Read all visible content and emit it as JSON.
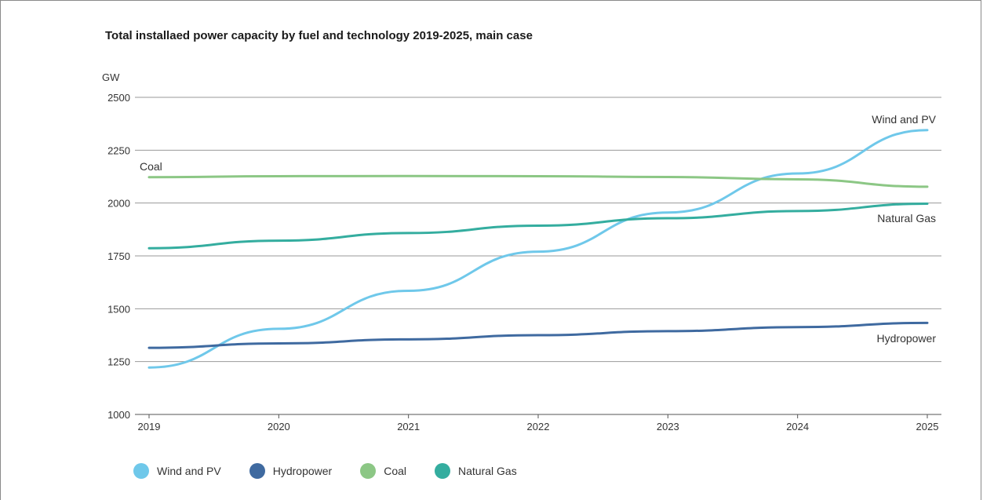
{
  "chart_data": {
    "type": "line",
    "title": "Total installaed power capacity by fuel and technology 2019-2025, main case",
    "ylabel": "GW",
    "xlabel": "",
    "x": [
      "2019",
      "2020",
      "2021",
      "2022",
      "2023",
      "2024",
      "2025"
    ],
    "yticks": [
      "1000",
      "1250",
      "1500",
      "1750",
      "2000",
      "2250",
      "2500"
    ],
    "ylim": [
      1000,
      2500
    ],
    "grid": "horizontal",
    "legend_position": "bottom",
    "series": [
      {
        "name": "Wind and PV",
        "color": "#6fc8ea",
        "values": [
          1222,
          1405,
          1585,
          1770,
          1955,
          2140,
          2345
        ]
      },
      {
        "name": "Hydropower",
        "color": "#3f6aa0",
        "values": [
          1315,
          1336,
          1355,
          1375,
          1394,
          1413,
          1433
        ]
      },
      {
        "name": "Coal",
        "color": "#8cc785",
        "values": [
          2122,
          2127,
          2128,
          2127,
          2123,
          2112,
          2077
        ]
      },
      {
        "name": "Natural Gas",
        "color": "#34ad9f",
        "values": [
          1786,
          1822,
          1858,
          1893,
          1928,
          1962,
          1997
        ]
      }
    ],
    "line_labels": [
      "Wind and PV",
      "Hydropower",
      "Coal",
      "Natural Gas"
    ]
  }
}
